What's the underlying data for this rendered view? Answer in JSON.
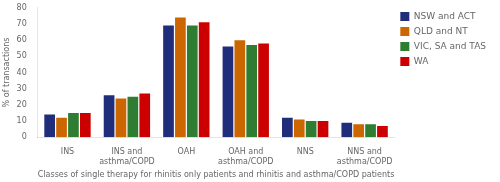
{
  "chart_data": {
    "type": "bar",
    "categories": [
      "INS",
      "INS and\nasthma/COPD",
      "OAH",
      "OAH and\nasthma/COPD",
      "NNS",
      "NNS and\nasthma/COPD"
    ],
    "series": [
      {
        "name": "NSW and ACT",
        "color": "#1f2d7a",
        "values": [
          14,
          26,
          69,
          56,
          12,
          9
        ]
      },
      {
        "name": "QLD and NT",
        "color": "#cc6600",
        "values": [
          12,
          24,
          74,
          60,
          11,
          8
        ]
      },
      {
        "name": "VIC, SA and TAS",
        "color": "#2e7d32",
        "values": [
          15,
          25,
          69,
          57,
          10,
          8
        ]
      },
      {
        "name": "WA",
        "color": "#cc0000",
        "values": [
          15,
          27,
          71,
          58,
          10,
          7
        ]
      }
    ],
    "ylabel": "% of transactions",
    "xlabel": "Classes of single therapy for rhinitis only patients and rhinitis and asthma/COPD patients",
    "ylim": [
      0,
      80
    ],
    "yticks": [
      0,
      10,
      20,
      30,
      40,
      50,
      60,
      70,
      80
    ],
    "grid": false,
    "legend": "right"
  }
}
